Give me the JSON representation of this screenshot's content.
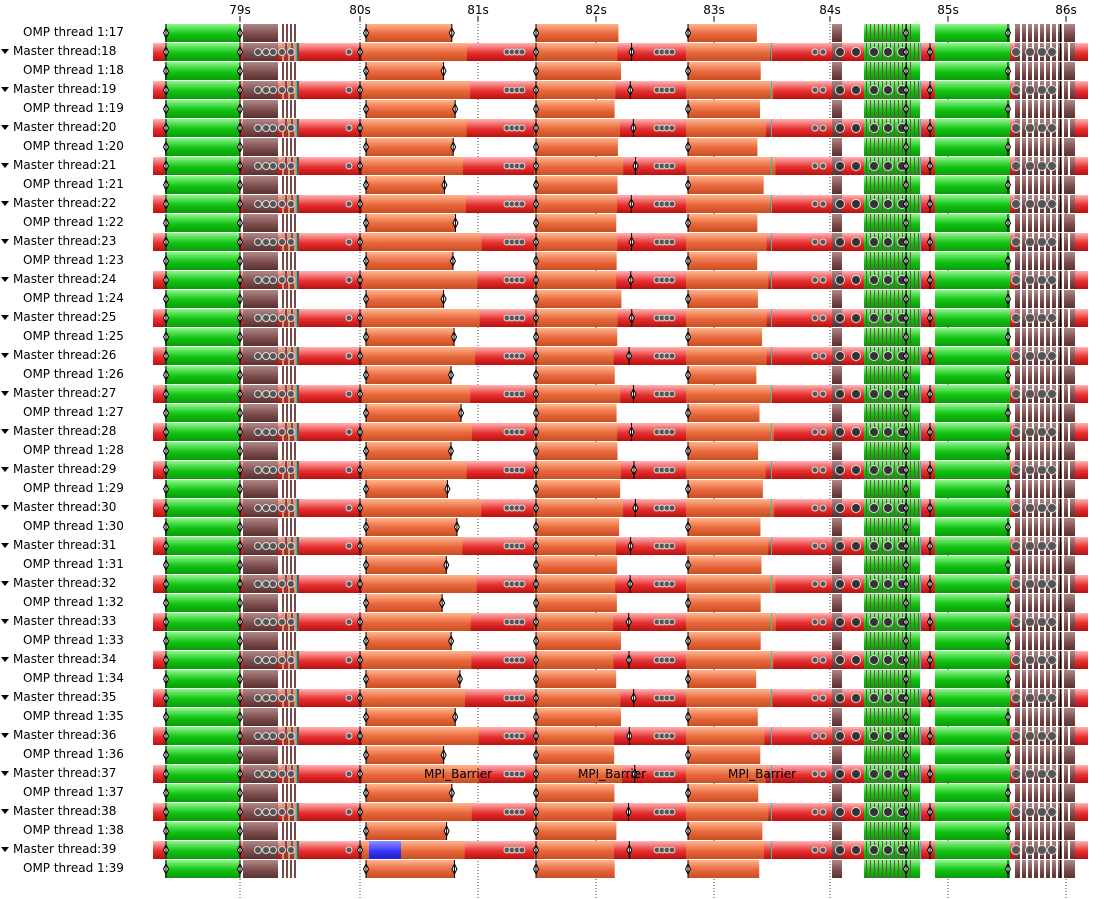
{
  "colors": {
    "mpi_red_top": "#ffb0b0",
    "mpi_red_mid": "#e83030",
    "omp_orange_top": "#ff9e70",
    "omp_orange_mid": "#e8643a",
    "compute_green_top": "#7ef07e",
    "compute_green_mid": "#11c011",
    "idle_brown": "#7a4a4a",
    "barrier_blue": "#3333ff",
    "accent_cyan": "#27c4c4",
    "gap_white": "#ffffff"
  },
  "axis": {
    "unit": "s",
    "ticks": [
      {
        "label": "79s",
        "value": 79
      },
      {
        "label": "80s",
        "value": 80
      },
      {
        "label": "81s",
        "value": 81
      },
      {
        "label": "82s",
        "value": 82
      },
      {
        "label": "83s",
        "value": 83
      },
      {
        "label": "84s",
        "value": 84
      },
      {
        "label": "85s",
        "value": 85
      },
      {
        "label": "86s",
        "value": 86
      }
    ],
    "view_start": 78.06,
    "view_end": 86.0
  },
  "timeline": {
    "rows": [
      {
        "label": "OMP thread 1:17",
        "kind": "omp",
        "expandable": false
      },
      {
        "label": "Master thread:18",
        "kind": "master",
        "expandable": true
      },
      {
        "label": "OMP thread 1:18",
        "kind": "omp",
        "expandable": false
      },
      {
        "label": "Master thread:19",
        "kind": "master",
        "expandable": true
      },
      {
        "label": "OMP thread 1:19",
        "kind": "omp",
        "expandable": false
      },
      {
        "label": "Master thread:20",
        "kind": "master",
        "expandable": true
      },
      {
        "label": "OMP thread 1:20",
        "kind": "omp",
        "expandable": false
      },
      {
        "label": "Master thread:21",
        "kind": "master",
        "expandable": true
      },
      {
        "label": "OMP thread 1:21",
        "kind": "omp",
        "expandable": false
      },
      {
        "label": "Master thread:22",
        "kind": "master",
        "expandable": true
      },
      {
        "label": "OMP thread 1:22",
        "kind": "omp",
        "expandable": false
      },
      {
        "label": "Master thread:23",
        "kind": "master",
        "expandable": true
      },
      {
        "label": "OMP thread 1:23",
        "kind": "omp",
        "expandable": false
      },
      {
        "label": "Master thread:24",
        "kind": "master",
        "expandable": true
      },
      {
        "label": "OMP thread 1:24",
        "kind": "omp",
        "expandable": false
      },
      {
        "label": "Master thread:25",
        "kind": "master",
        "expandable": true
      },
      {
        "label": "OMP thread 1:25",
        "kind": "omp",
        "expandable": false
      },
      {
        "label": "Master thread:26",
        "kind": "master",
        "expandable": true
      },
      {
        "label": "OMP thread 1:26",
        "kind": "omp",
        "expandable": false
      },
      {
        "label": "Master thread:27",
        "kind": "master",
        "expandable": true
      },
      {
        "label": "OMP thread 1:27",
        "kind": "omp",
        "expandable": false
      },
      {
        "label": "Master thread:28",
        "kind": "master",
        "expandable": true
      },
      {
        "label": "OMP thread 1:28",
        "kind": "omp",
        "expandable": false
      },
      {
        "label": "Master thread:29",
        "kind": "master",
        "expandable": true
      },
      {
        "label": "OMP thread 1:29",
        "kind": "omp",
        "expandable": false
      },
      {
        "label": "Master thread:30",
        "kind": "master",
        "expandable": true
      },
      {
        "label": "OMP thread 1:30",
        "kind": "omp",
        "expandable": false
      },
      {
        "label": "Master thread:31",
        "kind": "master",
        "expandable": true
      },
      {
        "label": "OMP thread 1:31",
        "kind": "omp",
        "expandable": false
      },
      {
        "label": "Master thread:32",
        "kind": "master",
        "expandable": true
      },
      {
        "label": "OMP thread 1:32",
        "kind": "omp",
        "expandable": false
      },
      {
        "label": "Master thread:33",
        "kind": "master",
        "expandable": true
      },
      {
        "label": "OMP thread 1:33",
        "kind": "omp",
        "expandable": false
      },
      {
        "label": "Master thread:34",
        "kind": "master",
        "expandable": true
      },
      {
        "label": "OMP thread 1:34",
        "kind": "omp",
        "expandable": false
      },
      {
        "label": "Master thread:35",
        "kind": "master",
        "expandable": true
      },
      {
        "label": "OMP thread 1:35",
        "kind": "omp",
        "expandable": false
      },
      {
        "label": "Master thread:36",
        "kind": "master",
        "expandable": true
      },
      {
        "label": "OMP thread 1:36",
        "kind": "omp",
        "expandable": false
      },
      {
        "label": "Master thread:37",
        "kind": "master",
        "expandable": true
      },
      {
        "label": "OMP thread 1:37",
        "kind": "omp",
        "expandable": false
      },
      {
        "label": "Master thread:38",
        "kind": "master",
        "expandable": true
      },
      {
        "label": "OMP thread 1:38",
        "kind": "omp",
        "expandable": false
      },
      {
        "label": "Master thread:39",
        "kind": "master",
        "expandable": true
      },
      {
        "label": "OMP thread 1:39",
        "kind": "omp",
        "expandable": false
      }
    ],
    "barrier_label": "MPI_Barrier",
    "labelled_barriers": [
      {
        "row": "Master thread:37",
        "start": 80.55
      },
      {
        "row": "Master thread:37",
        "start": 81.87
      },
      {
        "row": "Master thread:37",
        "start": 83.12
      }
    ],
    "blue_event": {
      "row": "Master thread:39",
      "start": 80.07,
      "end": 80.36
    }
  }
}
